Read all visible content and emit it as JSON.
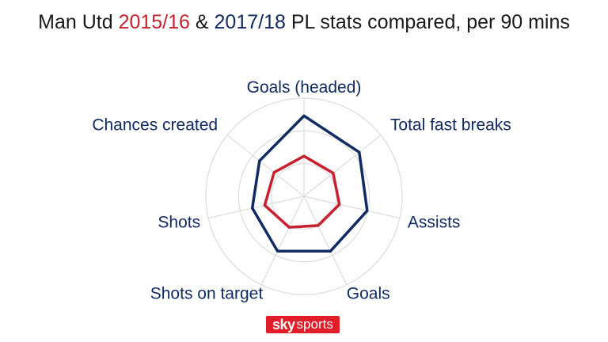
{
  "title": {
    "prefix": "Man Utd ",
    "season_a": "2015/16",
    "joiner": " & ",
    "season_b": "2017/18",
    "suffix": " PL stats compared, per 90 mins"
  },
  "colors": {
    "season_a": "#c8202f",
    "season_b": "#102a63",
    "grid": "#dcdcdc",
    "label": "#102a63",
    "title": "#1a1a1a"
  },
  "chart_data": {
    "type": "radar",
    "axes": [
      "Goals (headed)",
      "Total fast breaks",
      "Assists",
      "Goals",
      "Shots on target",
      "Shots",
      "Chances created"
    ],
    "scale": [
      0,
      1
    ],
    "rings": 3,
    "series": [
      {
        "name": "2015/16",
        "color": "#c8202f",
        "values": [
          0.41,
          0.38,
          0.37,
          0.33,
          0.35,
          0.41,
          0.39
        ]
      },
      {
        "name": "2017/18",
        "color": "#102a63",
        "values": [
          0.82,
          0.72,
          0.66,
          0.62,
          0.62,
          0.54,
          0.58
        ]
      }
    ],
    "grid": true,
    "legend": "none"
  },
  "logo": {
    "brand": "sky",
    "product": "sports"
  }
}
